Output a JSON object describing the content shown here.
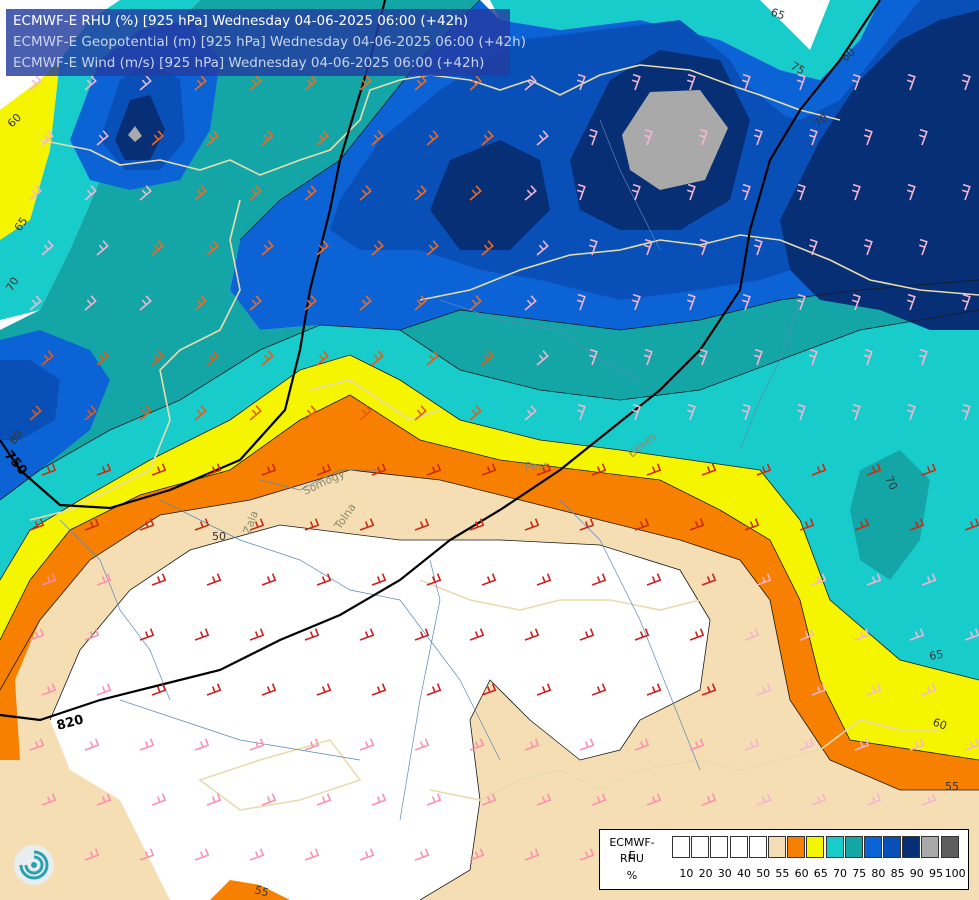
{
  "header": {
    "line1": "ECMWF-E RHU (%) [925 hPa] Wednesday 04-06-2025 06:00 (+42h)",
    "line2": "ECMWF-E Geopotential (m) [925 hPa] Wednesday 04-06-2025 06:00 (+42h)",
    "line3": "ECMWF-E Wind (m/s) [925 hPa] Wednesday 04-06-2025 06:00 (+42h)"
  },
  "legend": {
    "label_line1": "ECMWF-E",
    "label_line2": "RHU",
    "label_line3": "%",
    "swatch_colors": [
      "#ffffff",
      "#ffffff",
      "#ffffff",
      "#ffffff",
      "#ffffff",
      "#f5deb3",
      "#f78000",
      "#f5f500",
      "#19cccc",
      "#14a6a6",
      "#0b63d6",
      "#0850b8",
      "#072f76",
      "#a9a9a9",
      "#5e5e5e"
    ],
    "ticks": [
      "10",
      "20",
      "30",
      "40",
      "50",
      "55",
      "60",
      "65",
      "70",
      "75",
      "80",
      "85",
      "90",
      "95",
      "100"
    ]
  },
  "colors": {
    "rhu_100": "#5e5e5e",
    "rhu_95": "#a9a9a9",
    "rhu_90": "#072f76",
    "rhu_85": "#0850b8",
    "rhu_80": "#0b63d6",
    "rhu_75": "#14a6a6",
    "rhu_70": "#19cccc",
    "rhu_65": "#f5f500",
    "rhu_60": "#f78000",
    "rhu_55": "#f5deb3",
    "rhu_50": "#ffffff",
    "geopotential_line": "#000000",
    "border_line": "#e8dcae",
    "river_line": "#5b87b8"
  },
  "map": {
    "geopotential_labels": [
      "820",
      "750"
    ],
    "rhu_contour_labels": [
      "65",
      "70",
      "75",
      "60",
      "65",
      "70",
      "80",
      "60",
      "50",
      "70",
      "65",
      "60",
      "55",
      "55"
    ],
    "place_labels": [
      "Pest",
      "Békés",
      "Somogy",
      "Tolna",
      "Zala"
    ],
    "wind_symbol": "wind-barb-icon"
  }
}
